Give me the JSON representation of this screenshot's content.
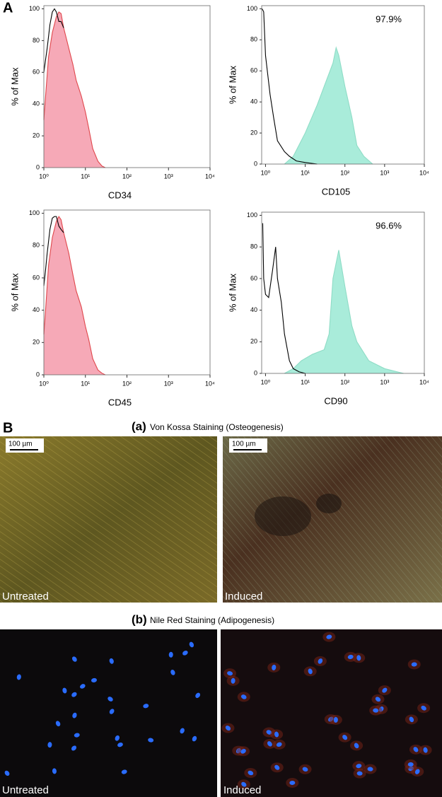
{
  "panel_a": {
    "label": "A"
  },
  "chart_data": [
    {
      "type": "area",
      "x_label": "CD34",
      "y_label": "% of Max",
      "log_x": true,
      "xlim": [
        1,
        10000
      ],
      "ylim": [
        0,
        102
      ],
      "xticks": [
        {
          "value": 1,
          "label": "10⁰"
        },
        {
          "value": 10,
          "label": "10¹"
        },
        {
          "value": 100,
          "label": "10²"
        },
        {
          "value": 1000,
          "label": "10³"
        },
        {
          "value": 10000,
          "label": "10⁴"
        }
      ],
      "yticks": [
        0,
        20,
        40,
        60,
        80,
        100
      ],
      "series": [
        {
          "color": "#e0474c",
          "fill": "#f6a9b7",
          "x": [
            1,
            1.1,
            1.3,
            1.6,
            2,
            2.3,
            2.6,
            3,
            4,
            5,
            6,
            8,
            10,
            12,
            15,
            20,
            25,
            30
          ],
          "values": [
            30,
            45,
            70,
            85,
            95,
            98,
            97,
            88,
            75,
            65,
            55,
            45,
            35,
            25,
            12,
            4,
            1,
            0
          ]
        },
        {
          "color": "#000000",
          "x": [
            1,
            1.1,
            1.2,
            1.4,
            1.6,
            1.8,
            2,
            2.3,
            2.6,
            3
          ],
          "values": [
            60,
            68,
            75,
            90,
            98,
            100,
            98,
            92,
            92,
            88
          ]
        }
      ]
    },
    {
      "type": "area",
      "x_label": "CD105",
      "y_label": "% of Max",
      "annotation": "97.9%",
      "log_x": true,
      "xlim": [
        0.8,
        10000
      ],
      "ylim": [
        0,
        102
      ],
      "xticks": [
        {
          "value": 1,
          "label": "10⁰"
        },
        {
          "value": 10,
          "label": "10¹"
        },
        {
          "value": 100,
          "label": "10²"
        },
        {
          "value": 1000,
          "label": "10³"
        },
        {
          "value": 10000,
          "label": "10⁴"
        }
      ],
      "yticks": [
        0,
        20,
        40,
        60,
        80,
        100
      ],
      "series": [
        {
          "color": "#8fdcc6",
          "fill": "#a9ecda",
          "x": [
            3,
            5,
            10,
            20,
            30,
            50,
            60,
            70,
            100,
            150,
            200,
            300,
            500
          ],
          "values": [
            0,
            5,
            20,
            38,
            50,
            65,
            75,
            70,
            50,
            30,
            12,
            5,
            0
          ]
        },
        {
          "color": "#000000",
          "x": [
            0.82,
            0.9,
            1,
            1.3,
            1.6,
            2,
            3,
            4,
            6,
            10,
            20
          ],
          "values": [
            100,
            98,
            70,
            45,
            30,
            15,
            8,
            5,
            2,
            1,
            0
          ]
        }
      ]
    },
    {
      "type": "area",
      "x_label": "CD45",
      "y_label": "% of Max",
      "log_x": true,
      "xlim": [
        1,
        10000
      ],
      "ylim": [
        0,
        102
      ],
      "xticks": [
        {
          "value": 1,
          "label": "10⁰"
        },
        {
          "value": 10,
          "label": "10¹"
        },
        {
          "value": 100,
          "label": "10²"
        },
        {
          "value": 1000,
          "label": "10³"
        },
        {
          "value": 10000,
          "label": "10⁴"
        }
      ],
      "yticks": [
        0,
        20,
        40,
        60,
        80,
        100
      ],
      "series": [
        {
          "color": "#e0474c",
          "fill": "#f6a9b7",
          "x": [
            1,
            1.1,
            1.3,
            1.6,
            2,
            2.3,
            2.6,
            3,
            4,
            5,
            6,
            8,
            10,
            12,
            15,
            20,
            25,
            30
          ],
          "values": [
            25,
            40,
            68,
            85,
            95,
            98,
            96,
            88,
            75,
            62,
            52,
            42,
            30,
            22,
            10,
            3,
            1,
            0
          ]
        },
        {
          "color": "#000000",
          "x": [
            1,
            1.1,
            1.2,
            1.4,
            1.6,
            1.8,
            2,
            2.3,
            2.6,
            3
          ],
          "values": [
            55,
            65,
            75,
            90,
            97,
            98,
            98,
            92,
            90,
            88
          ]
        }
      ]
    },
    {
      "type": "area",
      "x_label": "CD90",
      "y_label": "% of Max",
      "annotation": "96.6%",
      "log_x": true,
      "xlim": [
        0.8,
        10000
      ],
      "ylim": [
        0,
        102
      ],
      "xticks": [
        {
          "value": 1,
          "label": "10⁰"
        },
        {
          "value": 10,
          "label": "10¹"
        },
        {
          "value": 100,
          "label": "10²"
        },
        {
          "value": 1000,
          "label": "10³"
        },
        {
          "value": 10000,
          "label": "10⁴"
        }
      ],
      "yticks": [
        0,
        20,
        40,
        60,
        80,
        100
      ],
      "series": [
        {
          "color": "#8fdcc6",
          "fill": "#a9ecda",
          "x": [
            3,
            5,
            8,
            15,
            30,
            40,
            50,
            70,
            100,
            150,
            200,
            400,
            1000,
            3000
          ],
          "values": [
            0,
            3,
            8,
            12,
            15,
            25,
            60,
            78,
            55,
            30,
            20,
            8,
            3,
            0
          ]
        },
        {
          "color": "#000000",
          "x": [
            0.85,
            0.9,
            1,
            1.2,
            1.5,
            1.8,
            2,
            2.5,
            3,
            4,
            5,
            7,
            10
          ],
          "values": [
            95,
            60,
            50,
            48,
            65,
            80,
            60,
            45,
            25,
            8,
            3,
            1,
            0
          ]
        }
      ]
    }
  ],
  "panel_b": {
    "label": "B",
    "sections": [
      {
        "letter": "(a)",
        "title": "Von Kossa Staining (Osteogenesis)",
        "images": [
          {
            "label": "Untreated",
            "scale_bar": "100 µm"
          },
          {
            "label": "Induced",
            "scale_bar": "100 µm"
          }
        ]
      },
      {
        "letter": "(b)",
        "title": "Nile Red Staining (Adipogenesis)",
        "images": [
          {
            "label": "Untreated"
          },
          {
            "label": "Induced"
          }
        ]
      }
    ]
  }
}
